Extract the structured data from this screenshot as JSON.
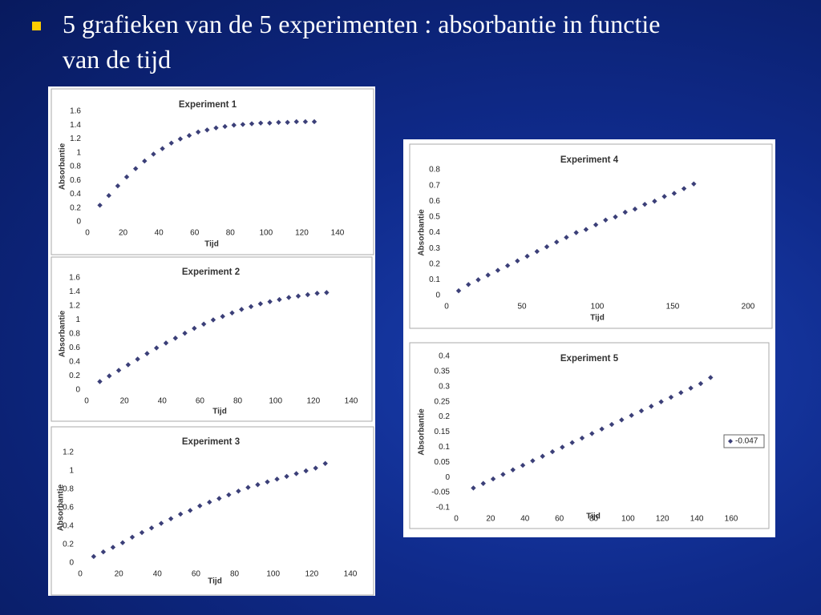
{
  "slide": {
    "heading": "5 grafieken van de 5 experimenten : absorbantie in functie van de tijd"
  },
  "chart_data": [
    {
      "type": "scatter",
      "title": "Experiment 1",
      "x_label": "Tijd",
      "y_label": "Absorbantie",
      "x": [
        7,
        12,
        17,
        22,
        27,
        32,
        37,
        42,
        47,
        52,
        57,
        62,
        67,
        72,
        77,
        82,
        87,
        92,
        97,
        102,
        107,
        112,
        117,
        122,
        127
      ],
      "series": [
        {
          "color": "#3b3f78",
          "values": [
            0.24,
            0.38,
            0.52,
            0.65,
            0.77,
            0.88,
            0.98,
            1.06,
            1.14,
            1.2,
            1.25,
            1.3,
            1.33,
            1.36,
            1.38,
            1.4,
            1.41,
            1.42,
            1.43,
            1.43,
            1.44,
            1.44,
            1.45,
            1.45,
            1.45
          ]
        }
      ],
      "xlim": [
        0,
        140
      ],
      "ylim": [
        0,
        1.6
      ],
      "xticks": [
        0,
        20,
        40,
        60,
        80,
        100,
        120,
        140
      ],
      "yticks": [
        0,
        0.2,
        0.4,
        0.6,
        0.8,
        1,
        1.2,
        1.4,
        1.6
      ]
    },
    {
      "type": "scatter",
      "title": "Experiment 2",
      "x_label": "Tijd",
      "y_label": "Absorbantie",
      "x": [
        7,
        12,
        17,
        22,
        27,
        32,
        37,
        42,
        47,
        52,
        57,
        62,
        67,
        72,
        77,
        82,
        87,
        92,
        97,
        102,
        107,
        112,
        117,
        122,
        127
      ],
      "series": [
        {
          "color": "#3b3f78",
          "values": [
            0.12,
            0.2,
            0.28,
            0.36,
            0.44,
            0.52,
            0.6,
            0.67,
            0.74,
            0.81,
            0.88,
            0.94,
            1.0,
            1.05,
            1.1,
            1.15,
            1.19,
            1.23,
            1.26,
            1.29,
            1.32,
            1.34,
            1.36,
            1.38,
            1.39
          ]
        }
      ],
      "xlim": [
        0,
        140
      ],
      "ylim": [
        0,
        1.6
      ],
      "xticks": [
        0,
        20,
        40,
        60,
        80,
        100,
        120,
        140
      ],
      "yticks": [
        0,
        0.2,
        0.4,
        0.6,
        0.8,
        1,
        1.2,
        1.4,
        1.6
      ]
    },
    {
      "type": "scatter",
      "title": "Experiment 3",
      "x_label": "Tijd",
      "y_label": "Absorbantie",
      "x": [
        7,
        12,
        17,
        22,
        27,
        32,
        37,
        42,
        47,
        52,
        57,
        62,
        67,
        72,
        77,
        82,
        87,
        92,
        97,
        102,
        107,
        112,
        117,
        122,
        127
      ],
      "series": [
        {
          "color": "#3b3f78",
          "values": [
            0.07,
            0.12,
            0.17,
            0.22,
            0.28,
            0.33,
            0.38,
            0.43,
            0.48,
            0.53,
            0.57,
            0.62,
            0.66,
            0.7,
            0.74,
            0.78,
            0.82,
            0.85,
            0.88,
            0.91,
            0.94,
            0.97,
            1.0,
            1.03,
            1.08
          ]
        }
      ],
      "xlim": [
        0,
        140
      ],
      "ylim": [
        0,
        1.2
      ],
      "xticks": [
        0,
        20,
        40,
        60,
        80,
        100,
        120,
        140
      ],
      "yticks": [
        0,
        0.2,
        0.4,
        0.6,
        0.8,
        1,
        1.2
      ]
    },
    {
      "type": "scatter",
      "title": "Experiment 4",
      "x_label": "Tijd",
      "y_label": "Absorbantie",
      "x": [
        8,
        14.5,
        21,
        27.5,
        34,
        40.5,
        47,
        53.5,
        60,
        66.5,
        73,
        79.5,
        86,
        92.5,
        99,
        105.5,
        112,
        118.5,
        125,
        131.5,
        138,
        144.5,
        151,
        157.5,
        164
      ],
      "series": [
        {
          "color": "#3b3f78",
          "values": [
            0.03,
            0.07,
            0.1,
            0.13,
            0.16,
            0.19,
            0.22,
            0.25,
            0.28,
            0.31,
            0.34,
            0.37,
            0.4,
            0.42,
            0.45,
            0.48,
            0.5,
            0.53,
            0.55,
            0.58,
            0.6,
            0.63,
            0.65,
            0.68,
            0.71
          ]
        }
      ],
      "xlim": [
        0,
        200
      ],
      "ylim": [
        0,
        0.8
      ],
      "xticks": [
        0,
        50,
        100,
        150,
        200
      ],
      "yticks": [
        0,
        0.1,
        0.2,
        0.3,
        0.4,
        0.5,
        0.6,
        0.7,
        0.8
      ]
    },
    {
      "type": "scatter",
      "title": "Experiment 5",
      "x_label": "Tijd",
      "y_label": "Absorbantie",
      "x": [
        10,
        15.75,
        21.5,
        27.25,
        33,
        38.75,
        44.5,
        50.25,
        56,
        61.75,
        67.5,
        73.25,
        79,
        84.75,
        90.5,
        96.25,
        102,
        107.75,
        113.5,
        119.25,
        125,
        130.75,
        136.5,
        142.25,
        148
      ],
      "series": [
        {
          "name": "-0.047",
          "color": "#3b3f78",
          "values": [
            -0.035,
            -0.02,
            -0.005,
            0.01,
            0.025,
            0.04,
            0.055,
            0.07,
            0.085,
            0.1,
            0.115,
            0.13,
            0.145,
            0.16,
            0.175,
            0.19,
            0.205,
            0.22,
            0.235,
            0.25,
            0.265,
            0.28,
            0.295,
            0.31,
            0.33
          ]
        }
      ],
      "xlim": [
        0,
        160
      ],
      "ylim": [
        -0.1,
        0.4
      ],
      "xticks": [
        0,
        20,
        40,
        60,
        80,
        100,
        120,
        140,
        160
      ],
      "yticks": [
        -0.1,
        -0.05,
        0,
        0.05,
        0.1,
        0.15,
        0.2,
        0.25,
        0.3,
        0.35,
        0.4
      ]
    }
  ]
}
